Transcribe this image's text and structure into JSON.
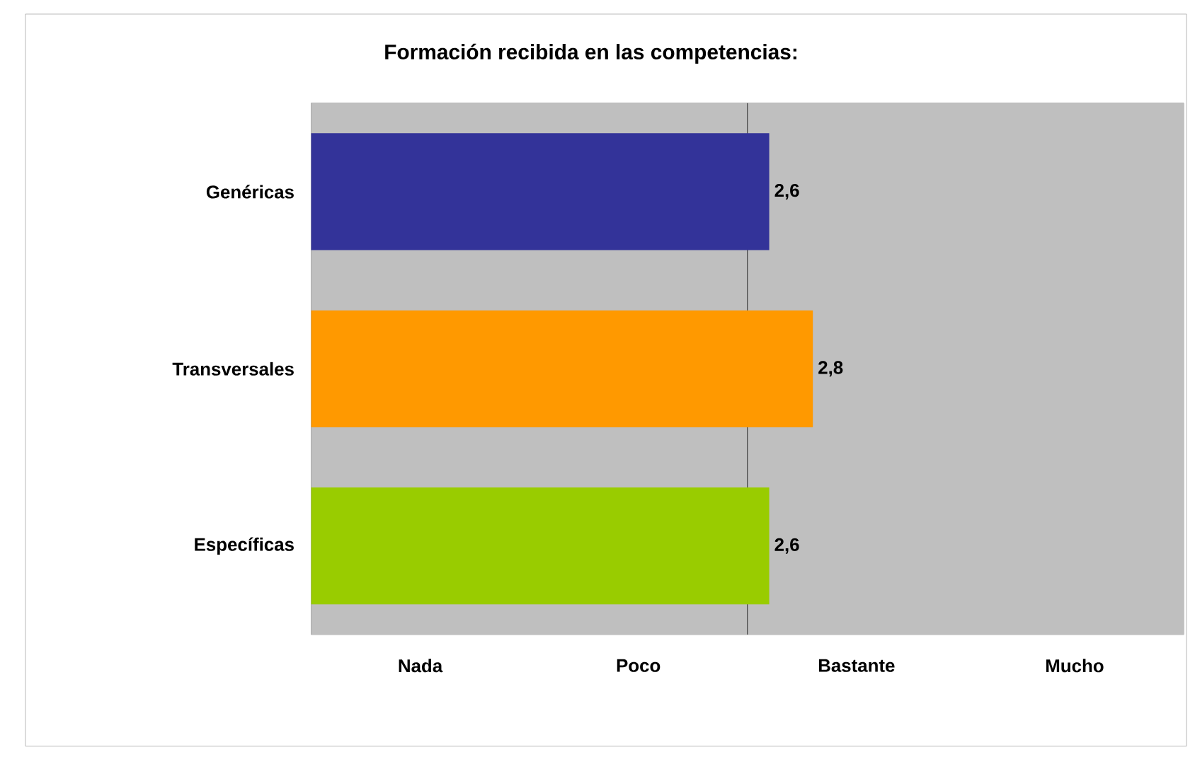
{
  "chart_data": {
    "type": "bar",
    "orientation": "horizontal",
    "title": "Formación recibida en las competencias:",
    "categories": [
      "Genéricas",
      "Transversales",
      "Específicas"
    ],
    "values": [
      2.6,
      2.8,
      2.6
    ],
    "value_labels": [
      "2,6",
      "2,8",
      "2,6"
    ],
    "colors": [
      "#333399",
      "#ff9900",
      "#99cc00"
    ],
    "xlim": [
      0.5,
      4.5
    ],
    "annotations": [
      "Nada",
      "Poco",
      "Bastante",
      "Mucho"
    ],
    "ref_lines": [
      {
        "axis": "x",
        "value": 2.5,
        "color": "#000000"
      }
    ]
  }
}
